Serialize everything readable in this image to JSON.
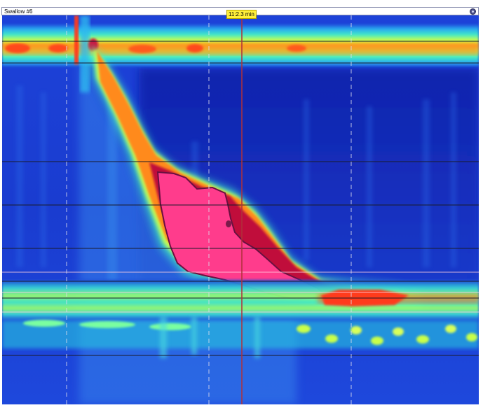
{
  "window": {
    "title": "Swallow #6"
  },
  "cursor": {
    "time_label": "11:2.3 min"
  },
  "icons": {
    "close": "close-circle-icon"
  },
  "colors": {
    "background": "#1a3fd6",
    "cursor_line": "#b0303a",
    "sensor_lines": "#1a1a2a",
    "dashed_grid": "#d8d8e8",
    "peak_fill": "#ff3c8c"
  }
}
